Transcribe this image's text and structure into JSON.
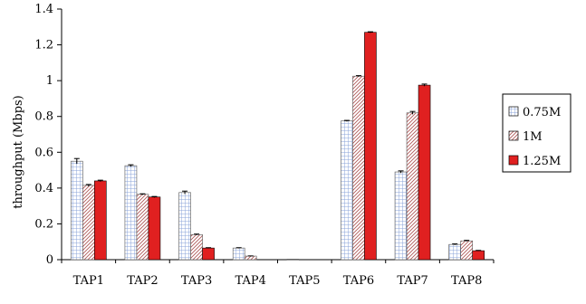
{
  "chart_data": {
    "type": "bar",
    "title": "",
    "xlabel": "",
    "ylabel": "throughput (Mbps)",
    "ylim": [
      0,
      1.4
    ],
    "yticks": [
      "0",
      "0.2",
      "0.4",
      "0.6",
      "0.8",
      "1",
      "1.2",
      "1.4"
    ],
    "grid": false,
    "legend_position": "right",
    "categories": [
      "TAP1",
      "TAP2",
      "TAP3",
      "TAP4",
      "TAP5",
      "TAP6",
      "TAP7",
      "TAP8"
    ],
    "series": [
      {
        "name": "0.75M",
        "pattern": "grid",
        "color": "#9fb4e0",
        "values": [
          0.55,
          0.525,
          0.375,
          0.065,
          0.003,
          0.775,
          0.49,
          0.085
        ],
        "errors": [
          0.015,
          0.005,
          0.008,
          0.002,
          0.0,
          0.003,
          0.006,
          0.003
        ]
      },
      {
        "name": "1M",
        "pattern": "diagonal",
        "color": "#c07070",
        "values": [
          0.415,
          0.365,
          0.14,
          0.02,
          0.0,
          1.025,
          0.82,
          0.105
        ],
        "errors": [
          0.005,
          0.003,
          0.003,
          0.001,
          0.0,
          0.003,
          0.008,
          0.003
        ]
      },
      {
        "name": "1.25M",
        "pattern": "solid",
        "color": "#e02020",
        "values": [
          0.44,
          0.35,
          0.065,
          0.0,
          0.0,
          1.27,
          0.975,
          0.05
        ],
        "errors": [
          0.004,
          0.003,
          0.002,
          0.0,
          0.0,
          0.003,
          0.006,
          0.002
        ]
      }
    ]
  }
}
